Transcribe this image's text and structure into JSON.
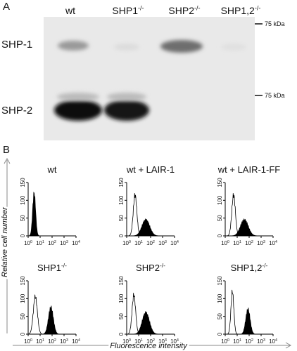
{
  "panel_a": {
    "label": "A",
    "lanes": [
      {
        "base": "wt",
        "sup": ""
      },
      {
        "base": "SHP1",
        "sup": "-/-"
      },
      {
        "base": "SHP2",
        "sup": "-/-"
      },
      {
        "base": "SHP1,2",
        "sup": "-/-"
      }
    ],
    "rows": [
      "SHP-1",
      "SHP-2"
    ],
    "marker": "75 kDa"
  },
  "panel_b": {
    "label": "B",
    "y_label": "Relative cell number",
    "x_label": "Fluorescence intensity",
    "yticks": [
      0,
      50,
      100,
      150
    ],
    "ylim": [
      0,
      150
    ],
    "xticks": [
      {
        "value": 1,
        "base": "10",
        "sup": "0"
      },
      {
        "value": 10,
        "base": "10",
        "sup": "1"
      },
      {
        "value": 100,
        "base": "10",
        "sup": "2"
      },
      {
        "value": 1000,
        "base": "10",
        "sup": "3"
      },
      {
        "value": 10000,
        "base": "10",
        "sup": "4"
      }
    ],
    "xlim": [
      1,
      10000
    ],
    "plots": [
      {
        "base": "wt",
        "sup": ""
      },
      {
        "base": "wt + LAIR-1",
        "sup": ""
      },
      {
        "base": "wt + LAIR-1-FF",
        "sup": ""
      },
      {
        "base": "SHP1",
        "sup": "-/-"
      },
      {
        "base": "SHP2",
        "sup": "-/-"
      },
      {
        "base": "SHP1,2",
        "sup": "-/-"
      }
    ]
  }
}
